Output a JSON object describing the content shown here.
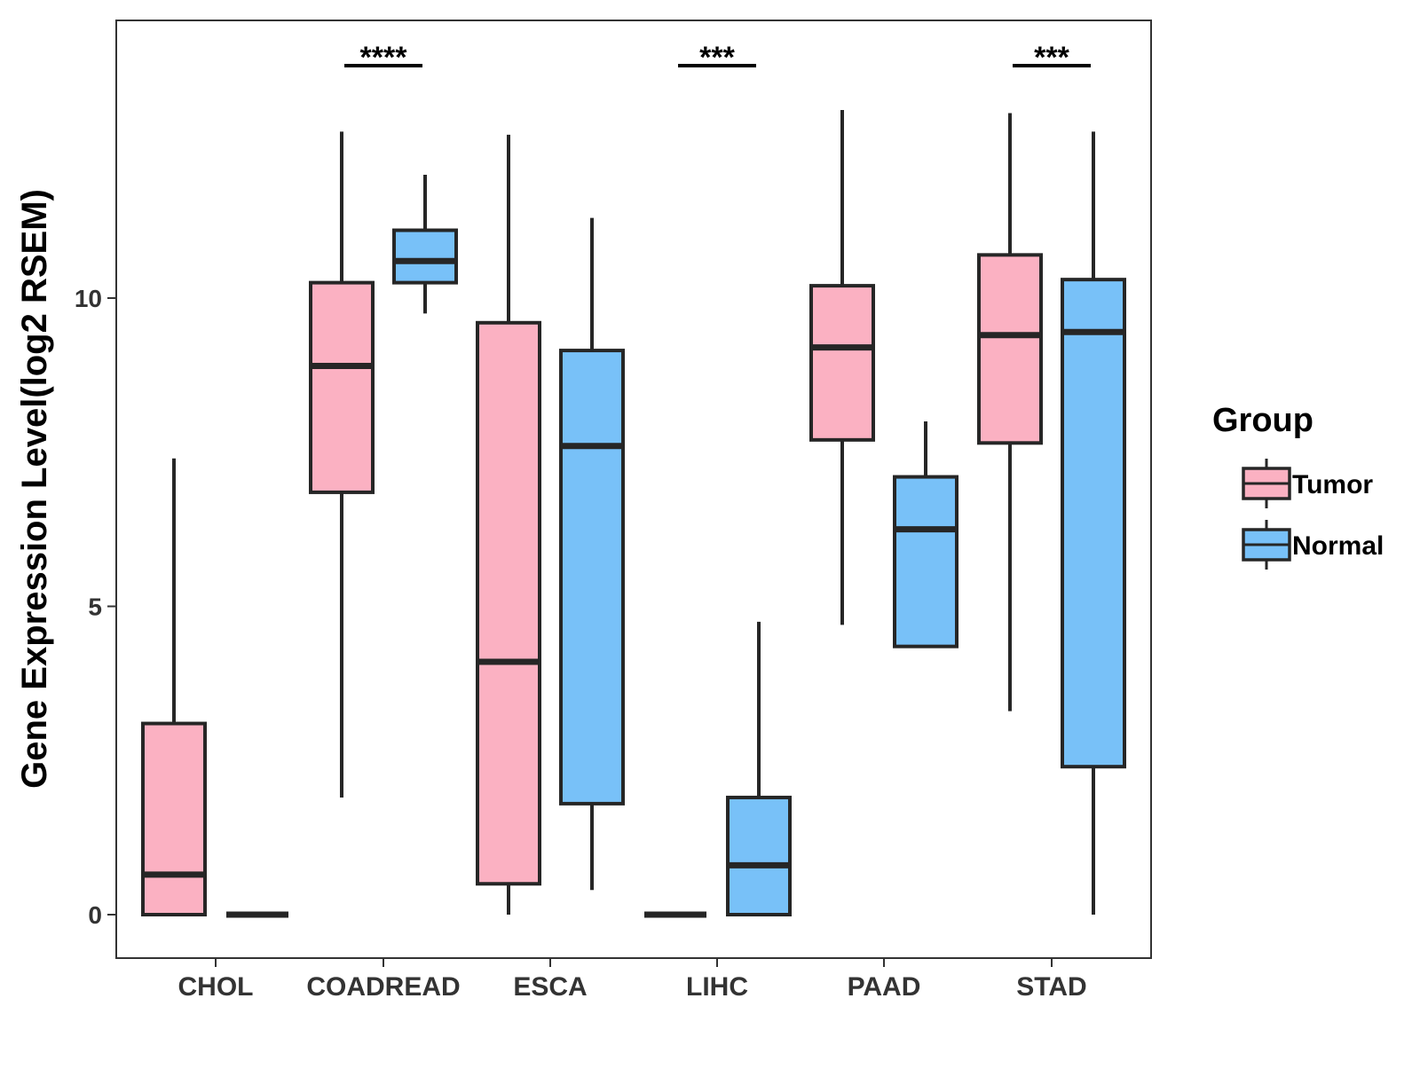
{
  "chart_data": {
    "type": "boxplot",
    "ylabel": "Gene Expression Level(log2 RSEM)",
    "xlabel": "",
    "ylim": [
      -0.7,
      14.5
    ],
    "yticks": [
      0,
      5,
      10
    ],
    "categories": [
      "CHOL",
      "COADREAD",
      "ESCA",
      "LIHC",
      "PAAD",
      "STAD"
    ],
    "legend": {
      "title": "Group",
      "position": "right",
      "entries": [
        {
          "name": "Tumor",
          "color": "#FBB1C2"
        },
        {
          "name": "Normal",
          "color": "#78C1F8"
        }
      ]
    },
    "series": [
      {
        "name": "Tumor",
        "color": "#FBB1C2",
        "boxes": [
          {
            "category": "CHOL",
            "min": 0,
            "q1": 0,
            "median": 0.65,
            "q3": 3.1,
            "max": 7.4
          },
          {
            "category": "COADREAD",
            "min": 1.9,
            "q1": 6.85,
            "median": 8.9,
            "q3": 10.25,
            "max": 12.7
          },
          {
            "category": "ESCA",
            "min": 0,
            "q1": 0.5,
            "median": 4.1,
            "q3": 9.6,
            "max": 12.65
          },
          {
            "category": "LIHC",
            "min": 0,
            "q1": 0,
            "median": 0,
            "q3": 0,
            "max": 0
          },
          {
            "category": "PAAD",
            "min": 4.7,
            "q1": 7.7,
            "median": 9.2,
            "q3": 10.2,
            "max": 13.05
          },
          {
            "category": "STAD",
            "min": 3.3,
            "q1": 7.65,
            "median": 9.4,
            "q3": 10.7,
            "max": 13.0
          }
        ]
      },
      {
        "name": "Normal",
        "color": "#78C1F8",
        "boxes": [
          {
            "category": "CHOL",
            "min": 0,
            "q1": 0,
            "median": 0,
            "q3": 0,
            "max": 0
          },
          {
            "category": "COADREAD",
            "min": 9.75,
            "q1": 10.25,
            "median": 10.6,
            "q3": 11.1,
            "max": 12.0
          },
          {
            "category": "ESCA",
            "min": 0.4,
            "q1": 1.8,
            "median": 7.6,
            "q3": 9.15,
            "max": 11.3
          },
          {
            "category": "LIHC",
            "min": 0,
            "q1": 0,
            "median": 0.8,
            "q3": 1.9,
            "max": 4.75
          },
          {
            "category": "PAAD",
            "min": 4.35,
            "q1": 4.35,
            "median": 6.25,
            "q3": 7.1,
            "max": 8.0
          },
          {
            "category": "STAD",
            "min": 0,
            "q1": 2.4,
            "median": 9.45,
            "q3": 10.3,
            "max": 12.7
          }
        ]
      }
    ],
    "significance": [
      {
        "category": "COADREAD",
        "label": "****"
      },
      {
        "category": "LIHC",
        "label": "***"
      },
      {
        "category": "STAD",
        "label": "***"
      }
    ]
  }
}
